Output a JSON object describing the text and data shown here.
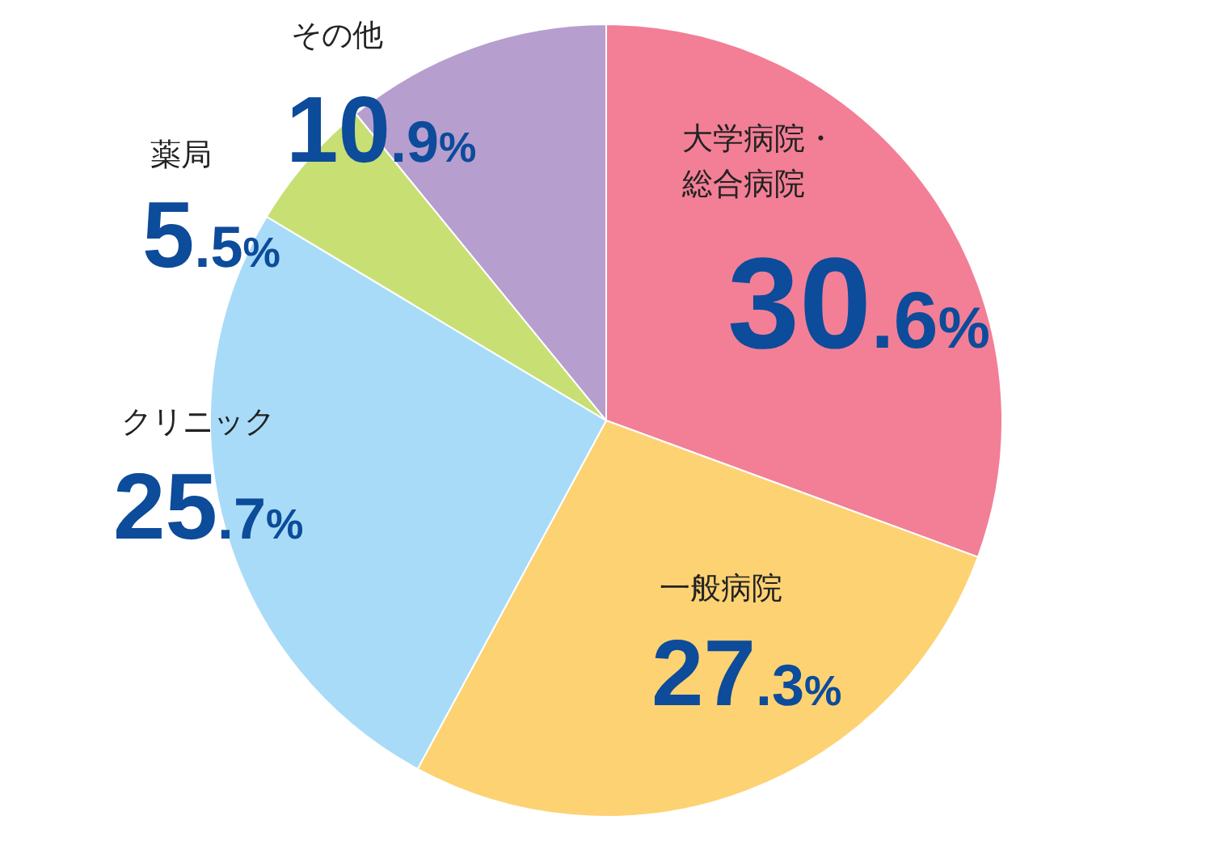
{
  "chart_data": {
    "type": "pie",
    "categories": [
      "大学病院・総合病院",
      "一般病院",
      "クリニック",
      "薬局",
      "その他"
    ],
    "values": [
      30.6,
      27.3,
      25.7,
      5.5,
      10.9
    ],
    "colors": [
      "#f27f96",
      "#fdd272",
      "#a8dbf8",
      "#c8df74",
      "#b69ece"
    ],
    "value_labels": [
      "30.6%",
      "27.3%",
      "25.7%",
      "5.5%",
      "10.9%"
    ]
  }
}
